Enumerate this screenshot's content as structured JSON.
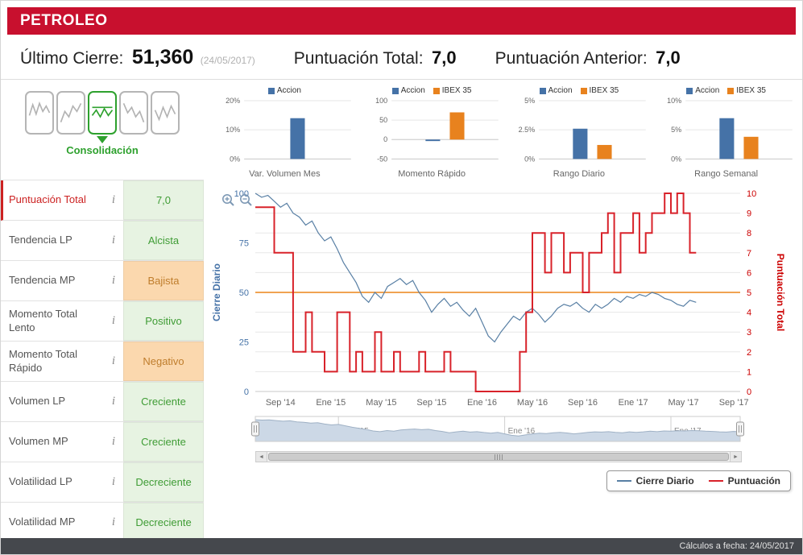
{
  "header": {
    "title": "PETROLEO"
  },
  "summary": {
    "ultimo_cierre_label": "Último Cierre:",
    "ultimo_cierre_value": "51,360",
    "ultimo_cierre_date": "(24/05/2017)",
    "punt_total_label": "Puntuación Total:",
    "punt_total_value": "7,0",
    "punt_anterior_label": "Puntuación Anterior:",
    "punt_anterior_value": "7,0"
  },
  "phase": {
    "label": "Consolidación"
  },
  "icons": {
    "info": "i",
    "zoom_in": "magnifier-plus",
    "zoom_out": "magnifier-minus",
    "scroll_left": "◄",
    "scroll_right": "►"
  },
  "indicators": {
    "rows": [
      {
        "label": "Puntuación Total",
        "value": "7,0",
        "state": "green",
        "highlight": true
      },
      {
        "label": "Tendencia LP",
        "value": "Alcista",
        "state": "green"
      },
      {
        "label": "Tendencia MP",
        "value": "Bajista",
        "state": "orange"
      },
      {
        "label": "Momento Total Lento",
        "value": "Positivo",
        "state": "green"
      },
      {
        "label": "Momento Total Rápido",
        "value": "Negativo",
        "state": "orange"
      },
      {
        "label": "Volumen LP",
        "value": "Creciente",
        "state": "green"
      },
      {
        "label": "Volumen MP",
        "value": "Creciente",
        "state": "green"
      },
      {
        "label": "Volatilidad LP",
        "value": "Decreciente",
        "state": "green"
      },
      {
        "label": "Volatilidad MP",
        "value": "Decreciente",
        "state": "green"
      }
    ]
  },
  "chart_data": {
    "mini_charts": [
      {
        "type": "bar",
        "title": "Var. Volumen Mes",
        "min": 0,
        "max": 20,
        "ticks": [
          {
            "v": 0,
            "t": "0%"
          },
          {
            "v": 10,
            "t": "10%"
          },
          {
            "v": 20,
            "t": "20%"
          }
        ],
        "bars": [
          {
            "name": "Accion",
            "value": 14
          }
        ]
      },
      {
        "type": "bar",
        "title": "Momento Rápido",
        "min": -50,
        "max": 100,
        "ticks": [
          {
            "v": -50,
            "t": "-50"
          },
          {
            "v": 0,
            "t": "0"
          },
          {
            "v": 50,
            "t": "50"
          },
          {
            "v": 100,
            "t": "100"
          }
        ],
        "bars": [
          {
            "name": "Accion",
            "value": -4
          },
          {
            "name": "IBEX 35",
            "value": 70
          }
        ]
      },
      {
        "type": "bar",
        "title": "Rango Diario",
        "min": 0,
        "max": 5,
        "ticks": [
          {
            "v": 0,
            "t": "0%"
          },
          {
            "v": 2.5,
            "t": "2.5%"
          },
          {
            "v": 5,
            "t": "5%"
          }
        ],
        "bars": [
          {
            "name": "Accion",
            "value": 2.6
          },
          {
            "name": "IBEX 35",
            "value": 1.2
          }
        ]
      },
      {
        "type": "bar",
        "title": "Rango Semanal",
        "min": 0,
        "max": 10,
        "ticks": [
          {
            "v": 0,
            "t": "0%"
          },
          {
            "v": 5,
            "t": "5%"
          },
          {
            "v": 10,
            "t": "10%"
          }
        ],
        "bars": [
          {
            "name": "Accion",
            "value": 7
          },
          {
            "name": "IBEX 35",
            "value": 3.8
          }
        ]
      }
    ],
    "main_chart": {
      "type": "line",
      "x_max": 38.5,
      "nav_max": 35,
      "threshold": 5,
      "y_left": {
        "title": "Cierre Diario",
        "min": 0,
        "max": 100,
        "ticks": [
          0,
          25,
          50,
          75,
          100
        ]
      },
      "y_right": {
        "title": "Puntuación Total",
        "min": 0,
        "max": 10,
        "ticks": [
          0,
          1,
          2,
          3,
          4,
          5,
          6,
          7,
          8,
          9,
          10
        ]
      },
      "x_ticks": [
        {
          "pos": 2,
          "label": "Sep '14"
        },
        {
          "pos": 6,
          "label": "Ene '15"
        },
        {
          "pos": 10,
          "label": "May '15"
        },
        {
          "pos": 14,
          "label": "Sep '15"
        },
        {
          "pos": 18,
          "label": "Ene '16"
        },
        {
          "pos": 22,
          "label": "May '16"
        },
        {
          "pos": 26,
          "label": "Sep '16"
        },
        {
          "pos": 30,
          "label": "Ene '17"
        },
        {
          "pos": 34,
          "label": "May '17"
        },
        {
          "pos": 38,
          "label": "Sep '17"
        }
      ],
      "series": {
        "cierre": {
          "name": "Cierre Diario",
          "points": [
            100,
            98,
            99,
            96,
            93,
            95,
            90,
            88,
            84,
            86,
            80,
            76,
            78,
            72,
            65,
            60,
            55,
            48,
            45,
            50,
            47,
            53,
            55,
            57,
            54,
            56,
            50,
            46,
            40,
            44,
            47,
            43,
            45,
            41,
            38,
            42,
            35,
            28,
            25,
            30,
            34,
            38,
            36,
            40,
            42,
            39,
            35,
            38,
            42,
            44,
            43,
            45,
            42,
            40,
            44,
            42,
            44,
            47,
            45,
            48,
            47,
            49,
            48,
            50,
            49,
            47,
            46,
            44,
            43,
            46,
            45
          ]
        },
        "puntuacion": {
          "name": "Puntuación",
          "points": [
            9.3,
            9.3,
            9.3,
            7,
            7,
            7,
            2,
            2,
            4,
            2,
            2,
            1,
            1,
            4,
            4,
            1,
            2,
            1,
            1,
            3,
            1,
            1,
            2,
            1,
            1,
            1,
            2,
            1,
            1,
            1,
            2,
            1,
            1,
            1,
            1,
            0,
            0,
            0,
            0,
            0,
            0,
            0,
            2,
            4,
            8,
            8,
            6,
            8,
            8,
            6,
            7,
            7,
            5,
            7,
            7,
            8,
            9,
            6,
            8,
            8,
            9,
            7,
            8,
            9,
            9,
            10,
            9,
            10,
            9,
            7,
            7
          ]
        }
      },
      "navigator": {
        "gridlines": [
          {
            "pos": 6,
            "label": "Ene '15"
          },
          {
            "pos": 18,
            "label": "Ene '16"
          },
          {
            "pos": 30,
            "label": "Ene '17"
          }
        ]
      }
    }
  },
  "colors": {
    "header_red": "#c8102e",
    "blue": "#4572a7",
    "orange": "#e8821e",
    "red": "#d8222a",
    "line_blue": "#587fa4",
    "orange_line": "#f0a352",
    "green_text": "#3f9c35",
    "green_bg": "#e7f3e2",
    "orange_text": "#bf7d2c",
    "orange_bg": "#fbd8ae",
    "nav_fill": "#ccd8e6",
    "nav_stroke": "#9fb1c5",
    "footer_bg": "#45484d"
  },
  "footer": {
    "text": "Cálculos a fecha: 24/05/2017"
  }
}
